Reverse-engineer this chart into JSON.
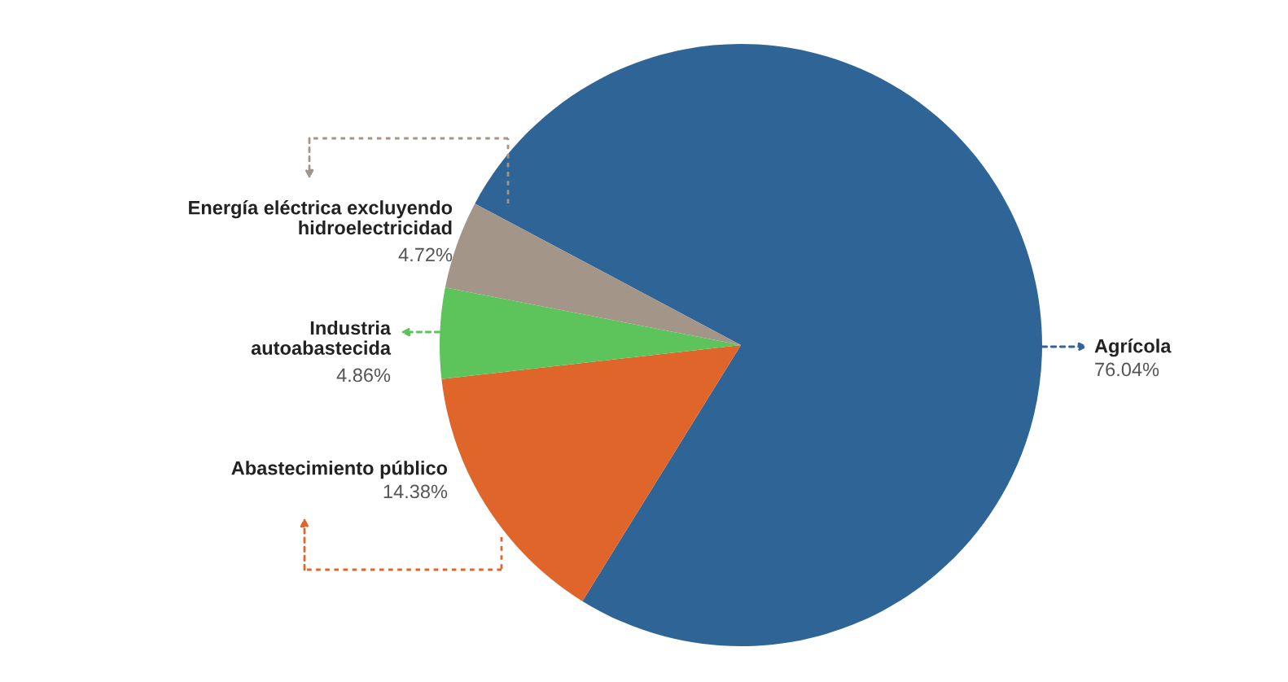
{
  "chart_data": {
    "type": "pie",
    "categories": [
      "Agrícola",
      "Abastecimiento público",
      "Industria autoabastecida",
      "Energía eléctrica excluyendo hidroelectricidad"
    ],
    "values": [
      76.04,
      14.38,
      4.86,
      4.72
    ],
    "colors": [
      "#2e6496",
      "#e0652a",
      "#5cc45a",
      "#a39587"
    ],
    "value_labels": [
      "76.04%",
      "14.38%",
      "4.86%",
      "4.72%"
    ]
  }
}
